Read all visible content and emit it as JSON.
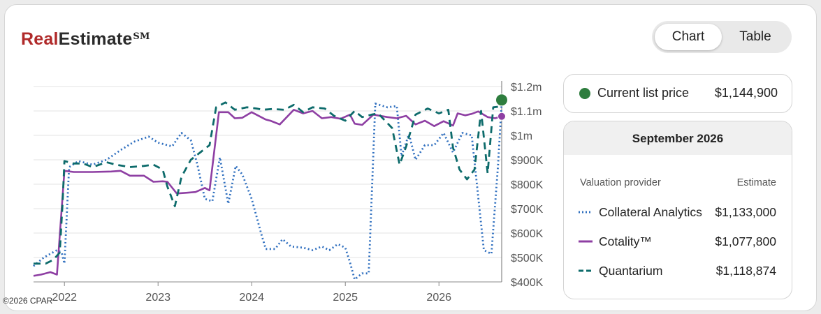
{
  "brand": {
    "red": "Real",
    "dark": "Estimate",
    "mark": "SM"
  },
  "toggle": {
    "chart_label": "Chart",
    "table_label": "Table"
  },
  "list_price": {
    "label": "Current list price",
    "value": "$1,144,900",
    "color": "#2e7d3e"
  },
  "estimates": {
    "heading": "September 2026",
    "col_provider": "Valuation provider",
    "col_estimate": "Estimate",
    "providers": [
      {
        "name": "Collateral Analytics",
        "value": "$1,133,000",
        "color": "#2f6fbf",
        "style": "dotted"
      },
      {
        "name": "Cotality™",
        "value": "$1,077,800",
        "color": "#8e3fa3",
        "style": "solid"
      },
      {
        "name": "Quantarium",
        "value": "$1,118,874",
        "color": "#0d6b6b",
        "style": "dashed"
      }
    ]
  },
  "copyright": "©2026 CPAR",
  "chart_data": {
    "type": "line",
    "x_ticks": [
      {
        "label": "2022",
        "x": 2022.0
      },
      {
        "label": "2023",
        "x": 2023.0
      },
      {
        "label": "2024",
        "x": 2024.0
      },
      {
        "label": "2025",
        "x": 2025.0
      },
      {
        "label": "2026",
        "x": 2026.0
      }
    ],
    "xlim": [
      2021.67,
      2026.67
    ],
    "ylim": [
      400000,
      1200000
    ],
    "y_ticks": [
      {
        "label": "$1.2m",
        "v": 1200000
      },
      {
        "label": "$1.1m",
        "v": 1100000
      },
      {
        "label": "$1m",
        "v": 1000000
      },
      {
        "label": "$900K",
        "v": 900000
      },
      {
        "label": "$800K",
        "v": 800000
      },
      {
        "label": "$700K",
        "v": 700000
      },
      {
        "label": "$600K",
        "v": 600000
      },
      {
        "label": "$500K",
        "v": 500000
      },
      {
        "label": "$400K",
        "v": 400000
      }
    ],
    "grid": true,
    "series": [
      {
        "name": "Collateral Analytics",
        "style": "dotted",
        "color": "#2f6fbf",
        "points": [
          [
            2021.67,
            465000
          ],
          [
            2021.78,
            500000
          ],
          [
            2021.92,
            530000
          ],
          [
            2021.97,
            520000
          ],
          [
            2022.0,
            475000
          ],
          [
            2022.05,
            870000
          ],
          [
            2022.15,
            895000
          ],
          [
            2022.3,
            880000
          ],
          [
            2022.45,
            900000
          ],
          [
            2022.6,
            940000
          ],
          [
            2022.75,
            975000
          ],
          [
            2022.9,
            995000
          ],
          [
            2023.0,
            970000
          ],
          [
            2023.15,
            955000
          ],
          [
            2023.25,
            1010000
          ],
          [
            2023.35,
            980000
          ],
          [
            2023.42,
            880000
          ],
          [
            2023.5,
            740000
          ],
          [
            2023.58,
            730000
          ],
          [
            2023.66,
            910000
          ],
          [
            2023.75,
            720000
          ],
          [
            2023.83,
            875000
          ],
          [
            2023.9,
            840000
          ],
          [
            2024.0,
            740000
          ],
          [
            2024.1,
            600000
          ],
          [
            2024.15,
            535000
          ],
          [
            2024.25,
            535000
          ],
          [
            2024.33,
            575000
          ],
          [
            2024.42,
            545000
          ],
          [
            2024.55,
            540000
          ],
          [
            2024.65,
            530000
          ],
          [
            2024.75,
            545000
          ],
          [
            2024.83,
            530000
          ],
          [
            2024.92,
            555000
          ],
          [
            2025.0,
            540000
          ],
          [
            2025.05,
            480000
          ],
          [
            2025.1,
            410000
          ],
          [
            2025.18,
            435000
          ],
          [
            2025.25,
            435000
          ],
          [
            2025.32,
            1130000
          ],
          [
            2025.45,
            1115000
          ],
          [
            2025.55,
            1120000
          ],
          [
            2025.6,
            915000
          ],
          [
            2025.68,
            1005000
          ],
          [
            2025.75,
            900000
          ],
          [
            2025.85,
            960000
          ],
          [
            2025.95,
            960000
          ],
          [
            2026.05,
            1010000
          ],
          [
            2026.15,
            930000
          ],
          [
            2026.25,
            1010000
          ],
          [
            2026.35,
            1000000
          ],
          [
            2026.48,
            530000
          ],
          [
            2026.56,
            515000
          ],
          [
            2026.63,
            870000
          ],
          [
            2026.67,
            1133000
          ]
        ]
      },
      {
        "name": "Cotality™",
        "style": "solid",
        "color": "#8e3fa3",
        "points": [
          [
            2021.67,
            425000
          ],
          [
            2021.75,
            430000
          ],
          [
            2021.85,
            440000
          ],
          [
            2021.92,
            430000
          ],
          [
            2022.0,
            855000
          ],
          [
            2022.1,
            850000
          ],
          [
            2022.3,
            850000
          ],
          [
            2022.5,
            852000
          ],
          [
            2022.6,
            855000
          ],
          [
            2022.7,
            835000
          ],
          [
            2022.85,
            835000
          ],
          [
            2022.95,
            810000
          ],
          [
            2023.05,
            812000
          ],
          [
            2023.1,
            810000
          ],
          [
            2023.2,
            762000
          ],
          [
            2023.3,
            765000
          ],
          [
            2023.4,
            768000
          ],
          [
            2023.5,
            785000
          ],
          [
            2023.55,
            775000
          ],
          [
            2023.65,
            1095000
          ],
          [
            2023.75,
            1095000
          ],
          [
            2023.82,
            1070000
          ],
          [
            2023.9,
            1072000
          ],
          [
            2024.0,
            1095000
          ],
          [
            2024.15,
            1065000
          ],
          [
            2024.2,
            1060000
          ],
          [
            2024.3,
            1045000
          ],
          [
            2024.45,
            1105000
          ],
          [
            2024.55,
            1090000
          ],
          [
            2024.65,
            1100000
          ],
          [
            2024.75,
            1070000
          ],
          [
            2024.85,
            1075000
          ],
          [
            2024.95,
            1068000
          ],
          [
            2025.05,
            1085000
          ],
          [
            2025.1,
            1048000
          ],
          [
            2025.18,
            1043000
          ],
          [
            2025.3,
            1085000
          ],
          [
            2025.45,
            1075000
          ],
          [
            2025.55,
            1070000
          ],
          [
            2025.65,
            1080000
          ],
          [
            2025.75,
            1045000
          ],
          [
            2025.85,
            1060000
          ],
          [
            2025.95,
            1038000
          ],
          [
            2026.05,
            1058000
          ],
          [
            2026.15,
            1040000
          ],
          [
            2026.2,
            1090000
          ],
          [
            2026.28,
            1082000
          ],
          [
            2026.35,
            1088000
          ],
          [
            2026.42,
            1098000
          ],
          [
            2026.52,
            1075000
          ],
          [
            2026.6,
            1070000
          ],
          [
            2026.67,
            1077800
          ]
        ]
      },
      {
        "name": "Quantarium",
        "style": "dashed",
        "color": "#0d6b6b",
        "points": [
          [
            2021.67,
            475000
          ],
          [
            2021.8,
            475000
          ],
          [
            2021.88,
            490000
          ],
          [
            2021.95,
            520000
          ],
          [
            2021.98,
            720000
          ],
          [
            2022.0,
            895000
          ],
          [
            2022.1,
            885000
          ],
          [
            2022.2,
            885000
          ],
          [
            2022.3,
            870000
          ],
          [
            2022.45,
            890000
          ],
          [
            2022.55,
            880000
          ],
          [
            2022.7,
            870000
          ],
          [
            2022.85,
            875000
          ],
          [
            2022.95,
            880000
          ],
          [
            2023.05,
            860000
          ],
          [
            2023.1,
            790000
          ],
          [
            2023.18,
            710000
          ],
          [
            2023.25,
            830000
          ],
          [
            2023.35,
            900000
          ],
          [
            2023.45,
            930000
          ],
          [
            2023.55,
            960000
          ],
          [
            2023.62,
            1115000
          ],
          [
            2023.72,
            1135000
          ],
          [
            2023.82,
            1105000
          ],
          [
            2023.95,
            1115000
          ],
          [
            2024.05,
            1110000
          ],
          [
            2024.12,
            1105000
          ],
          [
            2024.22,
            1108000
          ],
          [
            2024.35,
            1105000
          ],
          [
            2024.45,
            1125000
          ],
          [
            2024.55,
            1095000
          ],
          [
            2024.65,
            1115000
          ],
          [
            2024.78,
            1110000
          ],
          [
            2024.88,
            1080000
          ],
          [
            2025.0,
            1060000
          ],
          [
            2025.1,
            1100000
          ],
          [
            2025.18,
            1075000
          ],
          [
            2025.28,
            1085000
          ],
          [
            2025.35,
            1090000
          ],
          [
            2025.5,
            1030000
          ],
          [
            2025.58,
            880000
          ],
          [
            2025.65,
            955000
          ],
          [
            2025.75,
            1085000
          ],
          [
            2025.88,
            1110000
          ],
          [
            2026.0,
            1090000
          ],
          [
            2026.1,
            1105000
          ],
          [
            2026.15,
            950000
          ],
          [
            2026.22,
            860000
          ],
          [
            2026.3,
            820000
          ],
          [
            2026.38,
            860000
          ],
          [
            2026.45,
            1100000
          ],
          [
            2026.52,
            845000
          ],
          [
            2026.58,
            1115000
          ],
          [
            2026.67,
            1118874
          ]
        ]
      }
    ],
    "list_price_marker": {
      "x": 2026.67,
      "v": 1144900
    }
  }
}
